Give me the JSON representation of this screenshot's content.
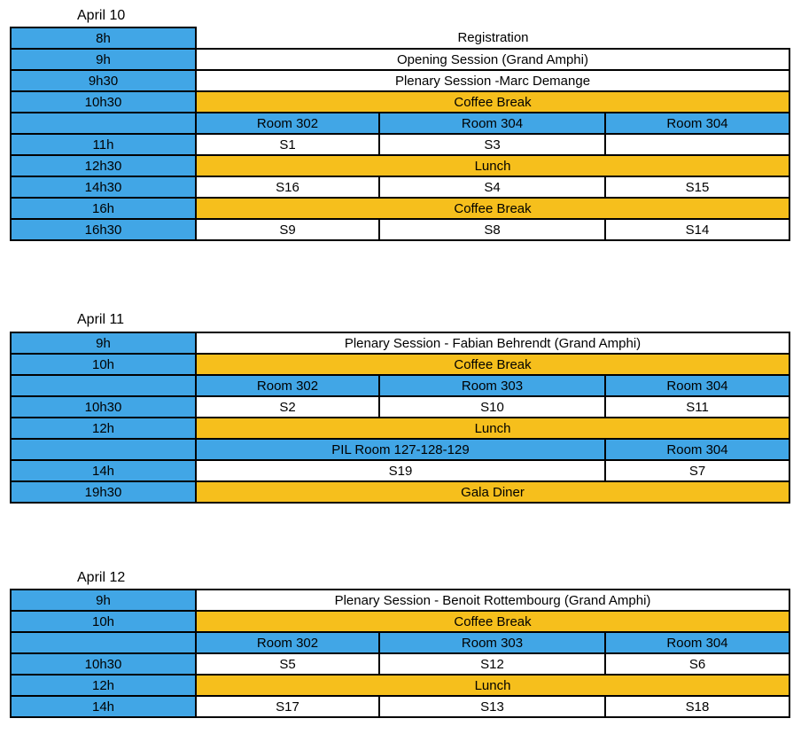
{
  "days": [
    {
      "label": "April 10",
      "rows": [
        {
          "time": "8h",
          "text": "Registration"
        },
        {
          "time": "9h",
          "text": "Opening Session (Grand Amphi)"
        },
        {
          "time": "9h30",
          "text": "Plenary Session -Marc Demange"
        },
        {
          "time": "10h30",
          "text": "Coffee Break"
        },
        {
          "time": "",
          "cells": [
            "Room 302",
            "Room 304",
            "Room 304"
          ]
        },
        {
          "time": "11h",
          "cells": [
            "S1",
            "S3",
            ""
          ]
        },
        {
          "time": "12h30",
          "text": "Lunch"
        },
        {
          "time": "14h30",
          "cells": [
            "S16",
            "S4",
            "S15"
          ]
        },
        {
          "time": "16h",
          "text": "Coffee Break"
        },
        {
          "time": "16h30",
          "cells": [
            "S9",
            "S8",
            "S14"
          ]
        }
      ]
    },
    {
      "label": "April 11",
      "rows": [
        {
          "time": "9h",
          "text": "Plenary Session - Fabian Behrendt (Grand Amphi)"
        },
        {
          "time": "10h",
          "text": "Coffee Break"
        },
        {
          "time": "",
          "cells": [
            "Room 302",
            "Room 303",
            "Room 304"
          ]
        },
        {
          "time": "10h30",
          "cells": [
            "S2",
            "S10",
            "S11"
          ]
        },
        {
          "time": "12h",
          "text": "Lunch"
        },
        {
          "time": "",
          "cells": [
            "PIL Room 127-128-129",
            "Room 304"
          ]
        },
        {
          "time": "14h",
          "cells": [
            "S19",
            "S7"
          ]
        },
        {
          "time": "19h30",
          "text": "Gala Diner"
        }
      ]
    },
    {
      "label": "April 12",
      "rows": [
        {
          "time": "9h",
          "text": "Plenary Session - Benoit Rottembourg (Grand Amphi)"
        },
        {
          "time": "10h",
          "text": "Coffee Break"
        },
        {
          "time": "",
          "cells": [
            "Room 302",
            "Room 303",
            "Room 304"
          ]
        },
        {
          "time": "10h30",
          "cells": [
            "S5",
            "S12",
            "S6"
          ]
        },
        {
          "time": "12h",
          "text": "Lunch"
        },
        {
          "time": "14h",
          "cells": [
            "S17",
            "S13",
            "S18"
          ]
        }
      ]
    }
  ],
  "colors": {
    "time_column": "#41a6e6",
    "room_header": "#41a6e6",
    "break_row": "#f6bf1c",
    "session_cell": "#ffffff"
  }
}
